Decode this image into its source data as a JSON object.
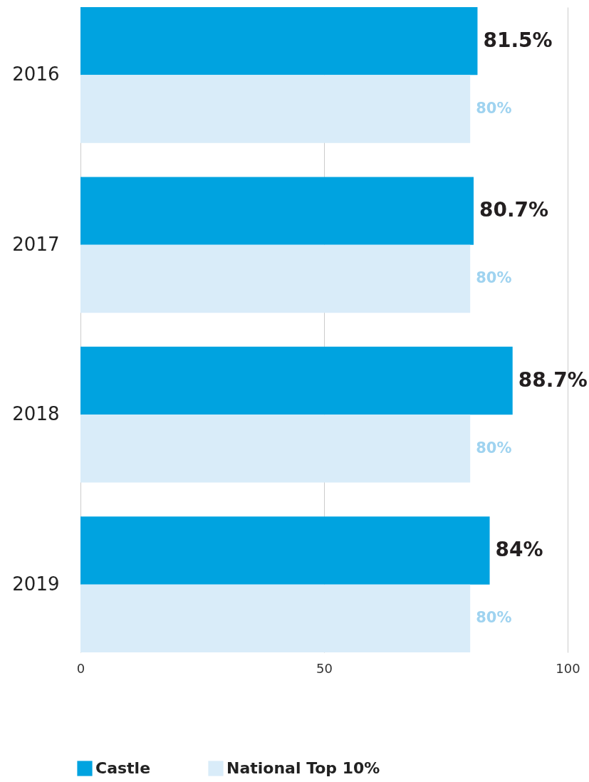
{
  "chart_data": {
    "type": "bar",
    "orientation": "horizontal",
    "categories": [
      "2016",
      "2017",
      "2018",
      "2019"
    ],
    "series": [
      {
        "name": "Castle",
        "color": "#00a3e0",
        "values": [
          81.5,
          80.7,
          88.7,
          84
        ],
        "value_labels": [
          "81.5%",
          "80.7%",
          "88.7%",
          "84%"
        ]
      },
      {
        "name": "National Top 10%",
        "color": "#d9ecf9",
        "values": [
          80,
          80,
          80,
          80
        ],
        "value_labels": [
          "80%",
          "80%",
          "80%",
          "80%"
        ]
      }
    ],
    "xlim": [
      0,
      100
    ],
    "xticks": [
      0,
      50,
      100
    ],
    "grid": "x",
    "legend": "bottom"
  }
}
